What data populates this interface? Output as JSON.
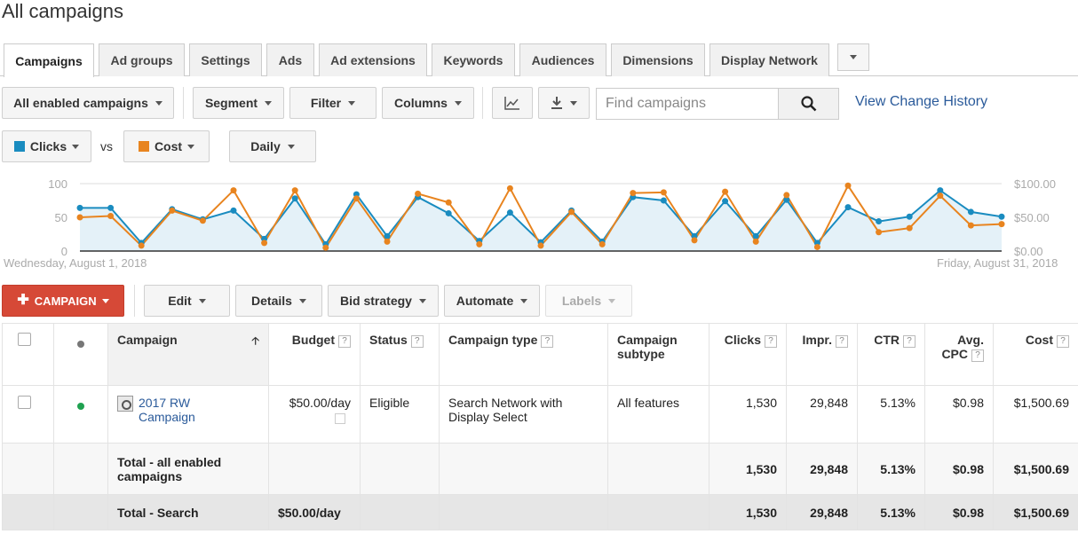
{
  "page": {
    "title": "All campaigns"
  },
  "tabs": [
    {
      "label": "Campaigns",
      "active": true
    },
    {
      "label": "Ad groups"
    },
    {
      "label": "Settings"
    },
    {
      "label": "Ads"
    },
    {
      "label": "Ad extensions"
    },
    {
      "label": "Keywords"
    },
    {
      "label": "Audiences"
    },
    {
      "label": "Dimensions"
    },
    {
      "label": "Display Network"
    }
  ],
  "toolbar": {
    "filter_scope": "All enabled campaigns",
    "segment": "Segment",
    "filter": "Filter",
    "columns": "Columns",
    "search_placeholder": "Find campaigns",
    "history_link": "View Change History"
  },
  "metrics": {
    "metric1": "Clicks",
    "metric1_color": "#1a8cc0",
    "vs": "vs",
    "metric2": "Cost",
    "metric2_color": "#e8841f",
    "period": "Daily"
  },
  "chart_data": {
    "type": "line",
    "x": [
      1,
      2,
      3,
      4,
      5,
      6,
      7,
      8,
      9,
      10,
      11,
      12,
      13,
      14,
      15,
      16,
      17,
      18,
      19,
      20,
      21,
      22,
      23,
      24,
      25,
      26,
      27,
      28,
      29,
      30,
      31
    ],
    "series": [
      {
        "name": "Clicks",
        "axis": "left",
        "color": "#1a8cc0",
        "values": [
          64,
          64,
          12,
          62,
          47,
          60,
          18,
          78,
          10,
          84,
          22,
          80,
          56,
          15,
          57,
          13,
          60,
          14,
          80,
          75,
          22,
          74,
          22,
          76,
          12,
          65,
          44,
          51,
          90,
          58,
          51
        ]
      },
      {
        "name": "Cost",
        "axis": "right",
        "color": "#e8841f",
        "values": [
          50,
          52,
          8,
          60,
          45,
          90,
          12,
          90,
          5,
          78,
          14,
          85,
          72,
          10,
          93,
          8,
          58,
          10,
          86,
          87,
          16,
          88,
          14,
          83,
          6,
          97,
          28,
          34,
          82,
          38,
          40
        ]
      }
    ],
    "ylim_left": [
      0,
      100
    ],
    "ylim_right": [
      0,
      100
    ],
    "yticks_left": [
      "100",
      "50",
      "0"
    ],
    "yticks_right": [
      "$100.00",
      "$50.00",
      "$0.00"
    ],
    "start_label": "Wednesday, August 1, 2018",
    "end_label": "Friday, August 31, 2018",
    "grid": true
  },
  "actions": {
    "campaign": "CAMPAIGN",
    "edit": "Edit",
    "details": "Details",
    "bid_strategy": "Bid strategy",
    "automate": "Automate",
    "labels": "Labels"
  },
  "table": {
    "headers": {
      "campaign": "Campaign",
      "budget": "Budget",
      "status": "Status",
      "campaign_type": "Campaign type",
      "campaign_subtype": "Campaign subtype",
      "clicks": "Clicks",
      "impr": "Impr.",
      "ctr": "CTR",
      "avg_cpc": "Avg. CPC",
      "cost": "Cost"
    },
    "row": {
      "status_color": "#1fa150",
      "campaign": "2017 RW Campaign",
      "budget": "$50.00/day",
      "status": "Eligible",
      "campaign_type": "Search Network with Display Select",
      "campaign_subtype": "All features",
      "clicks": "1,530",
      "impr": "29,848",
      "ctr": "5.13%",
      "avg_cpc": "$0.98",
      "cost": "$1,500.69"
    },
    "total_enabled": {
      "label": "Total - all enabled campaigns",
      "clicks": "1,530",
      "impr": "29,848",
      "ctr": "5.13%",
      "avg_cpc": "$0.98",
      "cost": "$1,500.69"
    },
    "total_search": {
      "label": "Total - Search",
      "budget": "$50.00/day",
      "clicks": "1,530",
      "impr": "29,848",
      "ctr": "5.13%",
      "avg_cpc": "$0.98",
      "cost": "$1,500.69"
    }
  }
}
